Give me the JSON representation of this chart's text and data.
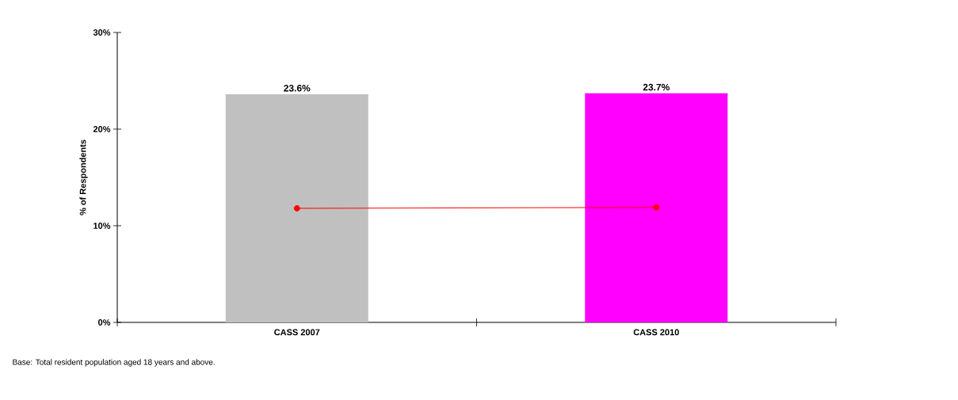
{
  "chart_data": {
    "type": "bar",
    "ylabel": "% of Respondents",
    "categories": [
      "CASS 2007",
      "CASS 2010"
    ],
    "ylim": [
      0,
      30
    ],
    "yticks": [
      {
        "value": 0,
        "label": "0%"
      },
      {
        "value": 10,
        "label": "10%"
      },
      {
        "value": 20,
        "label": "20%"
      },
      {
        "value": 30,
        "label": "30%"
      }
    ],
    "series": [
      {
        "colors": [
          "#c0c0c0",
          "#ff00ff"
        ],
        "values": [
          23.6,
          23.7
        ],
        "value_labels": [
          "23.6%",
          "23.7%"
        ]
      },
      {
        "type": "line",
        "color": "#ff0000",
        "marker": "circle",
        "values": [
          11.8,
          11.9
        ]
      }
    ],
    "annotations": [
      "Base: Total resident population aged 18 years and above."
    ]
  }
}
